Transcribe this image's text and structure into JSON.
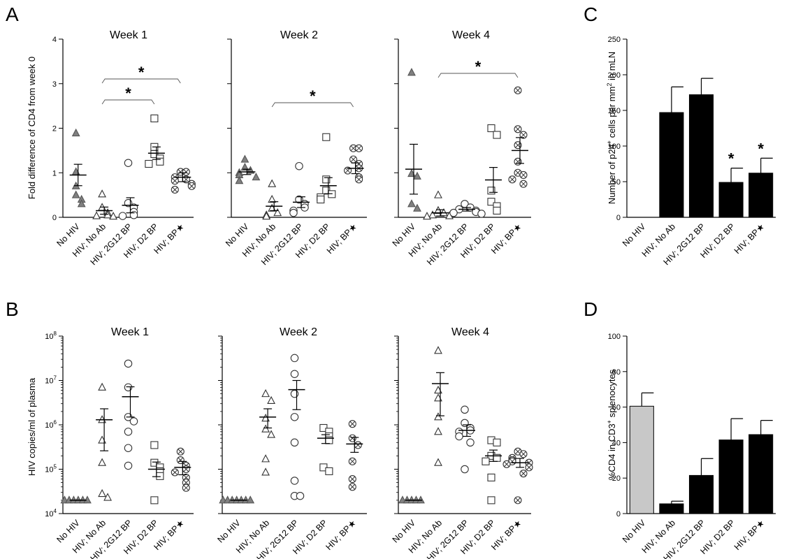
{
  "panel_letters": [
    "A",
    "B",
    "C",
    "D"
  ],
  "chart_data": [
    {
      "id": "A1",
      "panel": "A",
      "type": "scatter",
      "title": "Week 1",
      "ylabel": "Fold difference of CD4 from week 0",
      "ylim": [
        0,
        4
      ],
      "yticks": [
        "0",
        "1",
        "2",
        "3",
        "4"
      ],
      "categories": [
        "No HIV",
        "HIV; No Ab",
        "HIV; 2G12 BP",
        "HIV; D2 BP",
        "HIV; BP★"
      ],
      "markers": [
        "triangle-filled",
        "triangle",
        "circle",
        "square",
        "circle-x"
      ],
      "points": [
        [
          1.89,
          0.5,
          1.02,
          0.7,
          0.4,
          0.3
        ],
        [
          0.52,
          0.22,
          0.1,
          0.05,
          0.03,
          0.02
        ],
        [
          1.22,
          0.32,
          0.22,
          0.12,
          0.05,
          0.03
        ],
        [
          2.22,
          1.58,
          1.42,
          1.32,
          1.25,
          1.2
        ],
        [
          1.02,
          1.02,
          0.9,
          0.85,
          0.82,
          0.75,
          0.7,
          0.62
        ]
      ],
      "mean": [
        0.95,
        0.15,
        0.27,
        1.44,
        0.9
      ],
      "sem": [
        0.24,
        0.08,
        0.17,
        0.14,
        0.1
      ],
      "significance": [
        {
          "between": [
            1,
            3
          ],
          "label": "*"
        },
        {
          "between": [
            1,
            4
          ],
          "label": "*"
        }
      ]
    },
    {
      "id": "A2",
      "panel": "A",
      "type": "scatter",
      "title": "Week 2",
      "ylim": [
        0,
        4
      ],
      "categories": [
        "No HIV",
        "HIV; No Ab",
        "HIV; 2G12 BP",
        "HIV; D2 BP",
        "HIV; BP★"
      ],
      "markers": [
        "triangle-filled",
        "triangle",
        "circle",
        "square",
        "circle-x"
      ],
      "points": [
        [
          1.3,
          1.12,
          1.05,
          1.0,
          0.95,
          0.9,
          0.82
        ],
        [
          0.75,
          0.4,
          0.2,
          0.1,
          0.05,
          0.02
        ],
        [
          1.15,
          0.4,
          0.3,
          0.22,
          0.15,
          0.1
        ],
        [
          1.8,
          0.85,
          0.6,
          0.52,
          0.45,
          0.4
        ],
        [
          1.55,
          1.55,
          1.3,
          1.2,
          1.1,
          1.05,
          0.9,
          0.85
        ]
      ],
      "mean": [
        1.02,
        0.25,
        0.34,
        0.71,
        1.1
      ],
      "sem": [
        0.06,
        0.1,
        0.12,
        0.18,
        0.12
      ],
      "significance": [
        {
          "between": [
            1,
            4
          ],
          "label": "*"
        }
      ]
    },
    {
      "id": "A3",
      "panel": "A",
      "type": "scatter",
      "title": "Week 4",
      "ylim": [
        0,
        4
      ],
      "categories": [
        "No HIV",
        "HIV; No Ab",
        "HIV; 2G12 BP",
        "HIV; D2 BP",
        "HIV; BP★"
      ],
      "markers": [
        "triangle-filled",
        "triangle",
        "circle",
        "square",
        "circle-x"
      ],
      "points": [
        [
          3.25,
          0.98,
          0.92,
          0.3,
          0.2
        ],
        [
          0.5,
          0.15,
          0.1,
          0.05,
          0.03,
          0.02
        ],
        [
          0.3,
          0.22,
          0.18,
          0.15,
          0.12,
          0.1,
          0.08
        ],
        [
          2.0,
          1.85,
          0.6,
          0.35,
          0.25,
          0.15
        ],
        [
          2.85,
          1.98,
          1.85,
          1.62,
          1.25,
          1.0,
          0.95,
          0.85,
          0.75
        ]
      ],
      "mean": [
        1.08,
        0.1,
        0.18,
        0.84,
        1.5
      ],
      "sem": [
        0.56,
        0.07,
        0.04,
        0.28,
        0.29
      ],
      "significance": [
        {
          "between": [
            1,
            4
          ],
          "label": "*"
        }
      ]
    },
    {
      "id": "B1",
      "panel": "B",
      "type": "scatter",
      "title": "Week 1",
      "ylabel": "HIV copies/ml of plasma",
      "yscale": "log",
      "ylim": [
        10000,
        100000000
      ],
      "ytick_exponents": [
        "4",
        "5",
        "6",
        "7",
        "8"
      ],
      "categories": [
        "No HIV",
        "HIV; No Ab",
        "HIV; 2G12 BP",
        "HIV; D2 BP",
        "HIV; BP★"
      ],
      "markers": [
        "triangle-filled",
        "triangle",
        "circle",
        "square",
        "circle-x"
      ],
      "points": [
        [
          20000,
          20000,
          20000,
          20000,
          20000,
          20000
        ],
        [
          7000000,
          1300000,
          450000,
          140000,
          28000,
          23000
        ],
        [
          24000000,
          7000000,
          1500000,
          1200000,
          700000,
          300000,
          120000
        ],
        [
          350000,
          140000,
          110000,
          90000,
          70000,
          20000
        ],
        [
          250000,
          160000,
          120000,
          100000,
          85000,
          65000,
          50000,
          38000
        ]
      ],
      "mean": [
        20000,
        1300000,
        4300000,
        100000,
        110000
      ],
      "sem_upper": [
        20000,
        2300000,
        7200000,
        145000,
        150000
      ],
      "sem_lower": [
        20000,
        260000,
        1500000,
        68000,
        75000
      ]
    },
    {
      "id": "B2",
      "panel": "B",
      "type": "scatter",
      "title": "Week 2",
      "yscale": "log",
      "ylim": [
        10000,
        100000000
      ],
      "categories": [
        "No HIV",
        "HIV; No Ab",
        "HIV; 2G12 BP",
        "HIV; D2 BP",
        "HIV; BP★"
      ],
      "markers": [
        "triangle-filled",
        "triangle",
        "circle",
        "square",
        "circle-x"
      ],
      "points": [
        [
          20000,
          20000,
          20000,
          20000,
          20000,
          20000,
          20000
        ],
        [
          5000000,
          3500000,
          1400000,
          800000,
          600000,
          170000,
          85000
        ],
        [
          32000000,
          14000000,
          5000000,
          1500000,
          400000,
          55000,
          25000,
          25000
        ],
        [
          850000,
          700000,
          550000,
          450000,
          110000,
          90000
        ],
        [
          1050000,
          500000,
          350000,
          150000,
          60000,
          40000
        ]
      ],
      "mean": [
        20000,
        1500000,
        6200000,
        500000,
        370000
      ],
      "sem_upper": [
        20000,
        2300000,
        10000000,
        600000,
        520000
      ],
      "sem_lower": [
        20000,
        850000,
        2200000,
        380000,
        240000
      ]
    },
    {
      "id": "B3",
      "panel": "B",
      "type": "scatter",
      "title": "Week 4",
      "yscale": "log",
      "ylim": [
        10000,
        100000000
      ],
      "categories": [
        "No HIV",
        "HIV; No Ab",
        "HIV; 2G12 BP",
        "HIV; D2 BP",
        "HIV; BP★"
      ],
      "markers": [
        "triangle-filled",
        "triangle",
        "circle",
        "square",
        "circle-x"
      ],
      "points": [
        [
          20000,
          20000,
          20000,
          20000,
          20000
        ],
        [
          47000000,
          6000000,
          4000000,
          1500000,
          700000,
          140000
        ],
        [
          2200000,
          1100000,
          850000,
          750000,
          700000,
          550000,
          400000,
          100000
        ],
        [
          450000,
          400000,
          200000,
          180000,
          150000,
          65000,
          20000
        ],
        [
          250000,
          220000,
          180000,
          160000,
          150000,
          140000,
          130000,
          110000,
          80000,
          20000
        ]
      ],
      "mean": [
        20000,
        8500000,
        750000,
        200000,
        140000
      ],
      "sem_upper": [
        20000,
        15000000,
        1000000,
        270000,
        175000
      ],
      "sem_lower": [
        20000,
        1600000,
        550000,
        150000,
        110000
      ]
    },
    {
      "id": "C",
      "panel": "C",
      "type": "bar",
      "ylabel_parts": [
        "Number of p24",
        "+",
        " cells per mm",
        "2",
        " in mLN"
      ],
      "ylim": [
        0,
        250
      ],
      "yticks": [
        "0",
        "50",
        "100",
        "150",
        "200",
        "250"
      ],
      "categories": [
        "No HIV",
        "HIV; No Ab",
        "HIV; 2G12 BP",
        "HIV; D2 BP",
        "HIV; BP★"
      ],
      "values": [
        0,
        147,
        172,
        49,
        62
      ],
      "errors": [
        0,
        36,
        23,
        20,
        21
      ],
      "bar_colors": [
        "#000000",
        "#000000",
        "#000000",
        "#000000",
        "#000000"
      ],
      "annotations": [
        "",
        "",
        "",
        "*",
        "*"
      ]
    },
    {
      "id": "D",
      "panel": "D",
      "type": "bar",
      "ylabel_parts": [
        "%CD4 in CD3",
        "+",
        " splenocytes"
      ],
      "ylim": [
        0,
        100
      ],
      "yticks": [
        "0",
        "20",
        "40",
        "60",
        "80",
        "100"
      ],
      "categories": [
        "No HIV",
        "HIV; No Ab",
        "HIV; 2G12 BP",
        "HIV; D2 BP",
        "HIV; BP★"
      ],
      "values": [
        60.5,
        5.5,
        21.5,
        41.5,
        44.5
      ],
      "errors": [
        7.5,
        1.5,
        9.5,
        12,
        8
      ],
      "bar_colors": [
        "#c8c8c8",
        "#000000",
        "#000000",
        "#000000",
        "#000000"
      ]
    }
  ]
}
